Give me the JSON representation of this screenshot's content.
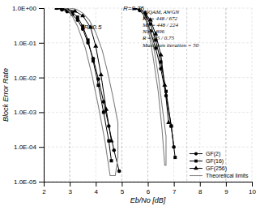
{
  "chart_data": {
    "type": "line",
    "xlabel": "Eb/No [dB]",
    "ylabel": "Block Error Rate",
    "log": "y",
    "grid": true,
    "legend": "lower right",
    "xlim": [
      2,
      10
    ],
    "ylim": [
      1e-05,
      1
    ],
    "xticks": [
      2,
      3,
      4,
      5,
      6,
      7,
      8,
      9,
      10
    ],
    "yticks": [
      {
        "value": 1e-05,
        "label": "1.0E-05"
      },
      {
        "value": 0.0001,
        "label": "1.0E-04"
      },
      {
        "value": 0.001,
        "label": "1.0E-03"
      },
      {
        "value": 0.01,
        "label": "1.0E-02"
      },
      {
        "value": 0.1,
        "label": "1.0E-01"
      },
      {
        "value": 1,
        "label": "1.0E+00"
      }
    ],
    "vlines": [
      3.0,
      5.0,
      6.0,
      7.5,
      9.0
    ],
    "series": [
      {
        "name": "GF(2)",
        "color": "#000000",
        "marker": "circle",
        "line_style": "solid",
        "x": [
          2.5,
          2.7,
          2.9,
          3.1,
          3.3,
          3.5,
          3.7,
          3.9,
          4.1,
          4.3,
          4.5,
          4.7,
          4.9
        ],
        "values": [
          1.0,
          0.9,
          0.8,
          0.65,
          0.45,
          0.25,
          0.1,
          0.035,
          0.009,
          0.002,
          0.0004,
          8e-05,
          2e-05
        ]
      },
      {
        "name": "GF(16)",
        "color": "#000000",
        "marker": "square",
        "line_style": "solid",
        "x": [
          2.5,
          2.7,
          2.9,
          3.1,
          3.3,
          3.5,
          3.7,
          3.9,
          4.1,
          4.3,
          4.5,
          4.6
        ],
        "values": [
          1.0,
          0.95,
          0.88,
          0.75,
          0.55,
          0.3,
          0.12,
          0.03,
          0.006,
          0.001,
          0.00015,
          4e-05
        ]
      },
      {
        "name": "GF(256)",
        "color": "#000000",
        "marker": "triangle",
        "line_style": "solid",
        "x": [
          2.5,
          2.7,
          2.9,
          3.2,
          3.5,
          3.8,
          4.0,
          4.2,
          4.4,
          4.6
        ],
        "values": [
          1.0,
          0.98,
          0.93,
          0.82,
          0.6,
          0.28,
          0.08,
          0.012,
          0.0012,
          0.00015
        ]
      },
      {
        "name": "GF(2)",
        "color": "#000000",
        "marker": "circle",
        "line_style": "solid",
        "x": [
          5.5,
          5.7,
          5.9,
          6.1,
          6.3,
          6.5,
          6.7,
          6.9,
          7.0
        ],
        "values": [
          1.0,
          0.85,
          0.55,
          0.22,
          0.07,
          0.018,
          0.003,
          0.0004,
          0.0001
        ]
      },
      {
        "name": "GF(16)",
        "color": "#000000",
        "marker": "square",
        "line_style": "solid",
        "x": [
          5.5,
          5.7,
          5.9,
          6.1,
          6.3,
          6.5,
          6.7,
          6.9,
          7.05
        ],
        "values": [
          1.0,
          0.88,
          0.65,
          0.35,
          0.12,
          0.028,
          0.004,
          0.0004,
          5e-05
        ]
      },
      {
        "name": "GF(256)",
        "color": "#000000",
        "marker": "triangle",
        "line_style": "solid",
        "x": [
          5.5,
          5.7,
          5.9,
          6.1,
          6.3,
          6.5,
          6.65,
          6.8
        ],
        "values": [
          1.0,
          0.9,
          0.72,
          0.45,
          0.18,
          0.045,
          0.006,
          0.0005
        ]
      },
      {
        "name": "Theoretical limits",
        "color": "#808080",
        "line_style": "solid",
        "x": [
          2.85,
          3.05,
          3.3,
          3.6,
          3.85,
          4.1,
          4.35,
          4.55,
          4.75,
          4.85,
          4.85,
          4.65,
          4.45,
          4.25,
          4.0,
          3.75,
          3.5,
          3.25,
          3.0,
          2.85
        ],
        "values": [
          1.0,
          0.7,
          0.3,
          0.07,
          0.012,
          0.0015,
          0.00015,
          1.5e-05,
          1.5e-05,
          5e-05,
          0.0005,
          0.003,
          0.015,
          0.06,
          0.2,
          0.45,
          0.72,
          0.92,
          1.0,
          1.0
        ]
      },
      {
        "name": "Theoretical limits",
        "color": "#808080",
        "line_style": "solid",
        "x": [
          5.7,
          5.9,
          6.05,
          6.2,
          6.4,
          6.55,
          6.65,
          6.7,
          6.7,
          6.55,
          6.4,
          6.25,
          6.05,
          5.85,
          5.7
        ],
        "values": [
          1.0,
          0.55,
          0.18,
          0.04,
          0.004,
          0.0003,
          3e-05,
          3e-05,
          0.0002,
          0.0015,
          0.012,
          0.06,
          0.25,
          0.65,
          1.0
        ]
      }
    ],
    "annotations": [
      {
        "text": "R=0.5",
        "x": 3.55,
        "y": 0.25
      },
      {
        "text": "R=0.75",
        "x": 5.05,
        "y": 0.85
      },
      {
        "lines": [
          "16QAM, AWGN",
          "Kb = 448 / 672",
          "Mb = 448 / 224",
          "Nb = 896",
          "R = 0.5 / 0.75",
          "Maximum iteration = 50"
        ],
        "x": 5.8,
        "y": 0.95
      }
    ]
  }
}
